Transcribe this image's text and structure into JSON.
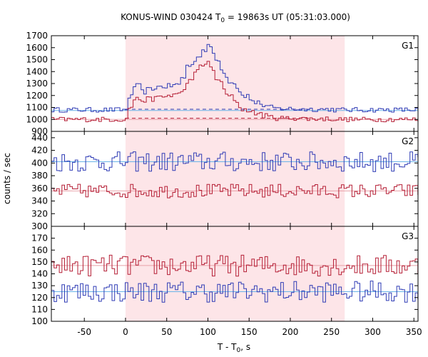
{
  "chart_data": {
    "type": "line",
    "title": "KONUS-WIND 030424 T",
    "title_sub": "0",
    "title_rest": " = 19863s UT (05:31:03.000)",
    "xlabel": "T - T",
    "xlabel_sub": "0",
    "xlabel_rest": ", s",
    "ylabel": "counts / sec",
    "xlim": [
      -90,
      355
    ],
    "x_ticks": [
      -50,
      0,
      50,
      100,
      150,
      200,
      250,
      300,
      350
    ],
    "x_tick_labels": [
      "-50",
      "0",
      "50",
      "100",
      "150",
      "200",
      "250",
      "300",
      "350"
    ],
    "shaded_region": [
      0,
      266
    ],
    "colors": {
      "blue": "#2e3bb5",
      "red": "#b51e35",
      "light_blue": "#6ab4e8",
      "pink": "#e8a0a8",
      "shade": "#fde5e8"
    },
    "panels": [
      {
        "label": "G1",
        "ylim": [
          900,
          1700
        ],
        "y_ticks": [
          900,
          1000,
          1100,
          1200,
          1300,
          1400,
          1500,
          1600,
          1700
        ],
        "y_tick_labels": [
          "",
          "1000",
          "1100",
          "1200",
          "1300",
          "1400",
          "1500",
          "1600",
          "1700"
        ],
        "bin_x": [
          -90,
          0,
          8,
          16,
          24,
          32,
          40,
          48,
          56,
          64,
          72,
          80,
          84,
          88,
          92,
          96,
          100,
          104,
          108,
          112,
          116,
          120,
          124,
          128,
          132,
          136,
          140,
          148,
          156,
          164,
          172,
          180,
          190,
          200,
          215,
          230,
          250,
          266,
          290,
          320,
          340,
          355
        ],
        "series": [
          {
            "color": "blue",
            "values": [
              1080,
              1190,
              1280,
              1230,
              1250,
              1270,
              1275,
              1280,
              1290,
              1350,
              1450,
              1500,
              1520,
              1540,
              1580,
              1620,
              1590,
              1560,
              1490,
              1430,
              1400,
              1350,
              1320,
              1300,
              1270,
              1240,
              1200,
              1160,
              1140,
              1110,
              1100,
              1090,
              1090,
              1085,
              1085,
              1085,
              1080,
              1080,
              1080,
              1080,
              1080
            ],
            "baseline": 1075,
            "baseline_color": "light_blue",
            "bg_level": 1085,
            "bg_to": 225
          },
          {
            "color": "red",
            "values": [
              1000,
              1100,
              1170,
              1160,
              1170,
              1180,
              1190,
              1200,
              1210,
              1240,
              1320,
              1380,
              1420,
              1450,
              1460,
              1470,
              1440,
              1400,
              1340,
              1300,
              1250,
              1210,
              1190,
              1170,
              1140,
              1110,
              1080,
              1060,
              1050,
              1030,
              1020,
              1010,
              1010,
              1010,
              1005,
              1005,
              1000,
              1000,
              1000,
              1000,
              1000
            ],
            "baseline": 1000,
            "baseline_color": "pink",
            "bg_level": 1010,
            "bg_to": 225
          }
        ]
      },
      {
        "label": "G2",
        "ylim": [
          300,
          450
        ],
        "y_ticks": [
          300,
          320,
          340,
          360,
          380,
          400,
          420,
          440
        ],
        "y_tick_labels": [
          "",
          "320",
          "340",
          "360",
          "380",
          "400",
          "420",
          "440"
        ],
        "series": [
          {
            "color": "blue",
            "mean": 402,
            "amp": 16,
            "baseline": 402,
            "baseline_color": "light_blue"
          },
          {
            "color": "red",
            "mean": 356,
            "amp": 11,
            "baseline": 356,
            "baseline_color": "pink"
          }
        ]
      },
      {
        "label": "G3",
        "ylim": [
          100,
          180
        ],
        "y_ticks": [
          100,
          110,
          120,
          130,
          140,
          150,
          160,
          170
        ],
        "y_tick_labels": [
          "100",
          "110",
          "120",
          "130",
          "140",
          "150",
          "160",
          "170"
        ],
        "series": [
          {
            "color": "red",
            "mean": 147,
            "amp": 9,
            "baseline": 147,
            "baseline_color": "pink"
          },
          {
            "color": "blue",
            "mean": 125,
            "amp": 9,
            "baseline": 125,
            "baseline_color": "light_blue"
          }
        ]
      }
    ]
  }
}
